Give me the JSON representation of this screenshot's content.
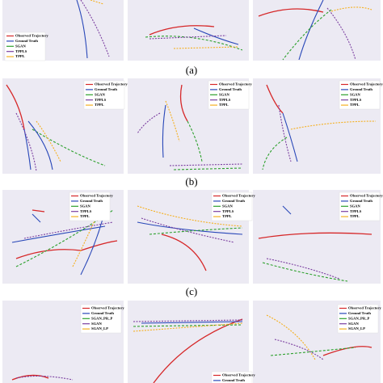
{
  "captions": [
    "(a)",
    "(b)",
    "(c)"
  ],
  "legends": [
    {
      "items": [
        "Observed Trajectory",
        "Ground Truth",
        "SGAN",
        "TPPLS",
        "TPPL"
      ]
    },
    {
      "items": [
        "Observed Trajectory",
        "Ground Truth",
        "SGAN",
        "TPPLS",
        "TPPL"
      ]
    },
    {
      "items": [
        "Observed Trajectory",
        "Ground Truth",
        "SGAN",
        "TPPLS",
        "TPPL"
      ]
    },
    {
      "items": [
        "Observed Trajectory",
        "Ground Truth",
        "SGAN",
        "TPPLS",
        "TPPL"
      ]
    },
    {
      "items": [
        "Observed Trajectory",
        "Ground Truth",
        "SGAN",
        "TPPLS",
        "TPPL"
      ]
    },
    {
      "items": [
        "Observed Trajectory",
        "Ground Truth",
        "SGAN",
        "TPPLS",
        "TPPL"
      ]
    },
    {
      "items": [
        "Observed Trajectory",
        "Ground Truth",
        "SGAN",
        "TPPLS",
        "TPPL"
      ]
    },
    {
      "items": [
        "Observed Trajectory",
        "Ground Truth",
        "SGAN_PR_P",
        "SGAN",
        "SGAN_LP"
      ]
    },
    {
      "items": [
        "Observed Trajectory",
        "Ground Truth"
      ]
    },
    {
      "items": [
        "Observed Trajectory",
        "Ground Truth",
        "SGAN_PR_P",
        "SGAN",
        "SGAN_LP"
      ]
    }
  ]
}
